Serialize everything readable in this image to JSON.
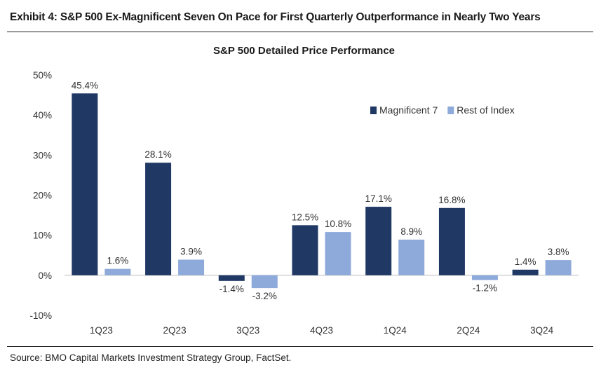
{
  "header": {
    "title": "Exhibit 4: S&P 500 Ex-Magnificent Seven On Pace for First Quarterly Outperformance in Nearly Two Years"
  },
  "footer": {
    "source": "Source: BMO Capital Markets Investment Strategy Group, FactSet."
  },
  "chart_data": {
    "type": "bar",
    "title": "S&P 500 Detailed Price Performance",
    "xlabel": "",
    "ylabel": "",
    "categories": [
      "1Q23",
      "2Q23",
      "3Q23",
      "4Q23",
      "1Q24",
      "2Q24",
      "3Q24"
    ],
    "series": [
      {
        "name": "Magnificent 7",
        "color": "#1f3864",
        "values": [
          45.4,
          28.1,
          -1.4,
          12.5,
          17.1,
          16.8,
          1.4
        ],
        "labels": [
          "45.4%",
          "28.1%",
          "-1.4%",
          "12.5%",
          "17.1%",
          "16.8%",
          "1.4%"
        ]
      },
      {
        "name": "Rest of Index",
        "color": "#8eaadb",
        "values": [
          1.6,
          3.9,
          -3.2,
          10.8,
          8.9,
          -1.2,
          3.8
        ],
        "labels": [
          "1.6%",
          "3.9%",
          "-3.2%",
          "10.8%",
          "8.9%",
          "-1.2%",
          "3.8%"
        ]
      }
    ],
    "ylim": [
      -10,
      50
    ],
    "yticks": [
      -10,
      0,
      10,
      20,
      30,
      40,
      50
    ],
    "ytick_labels": [
      "-10%",
      "0%",
      "10%",
      "20%",
      "30%",
      "40%",
      "50%"
    ],
    "grid": false,
    "legend_position": "top-right"
  }
}
